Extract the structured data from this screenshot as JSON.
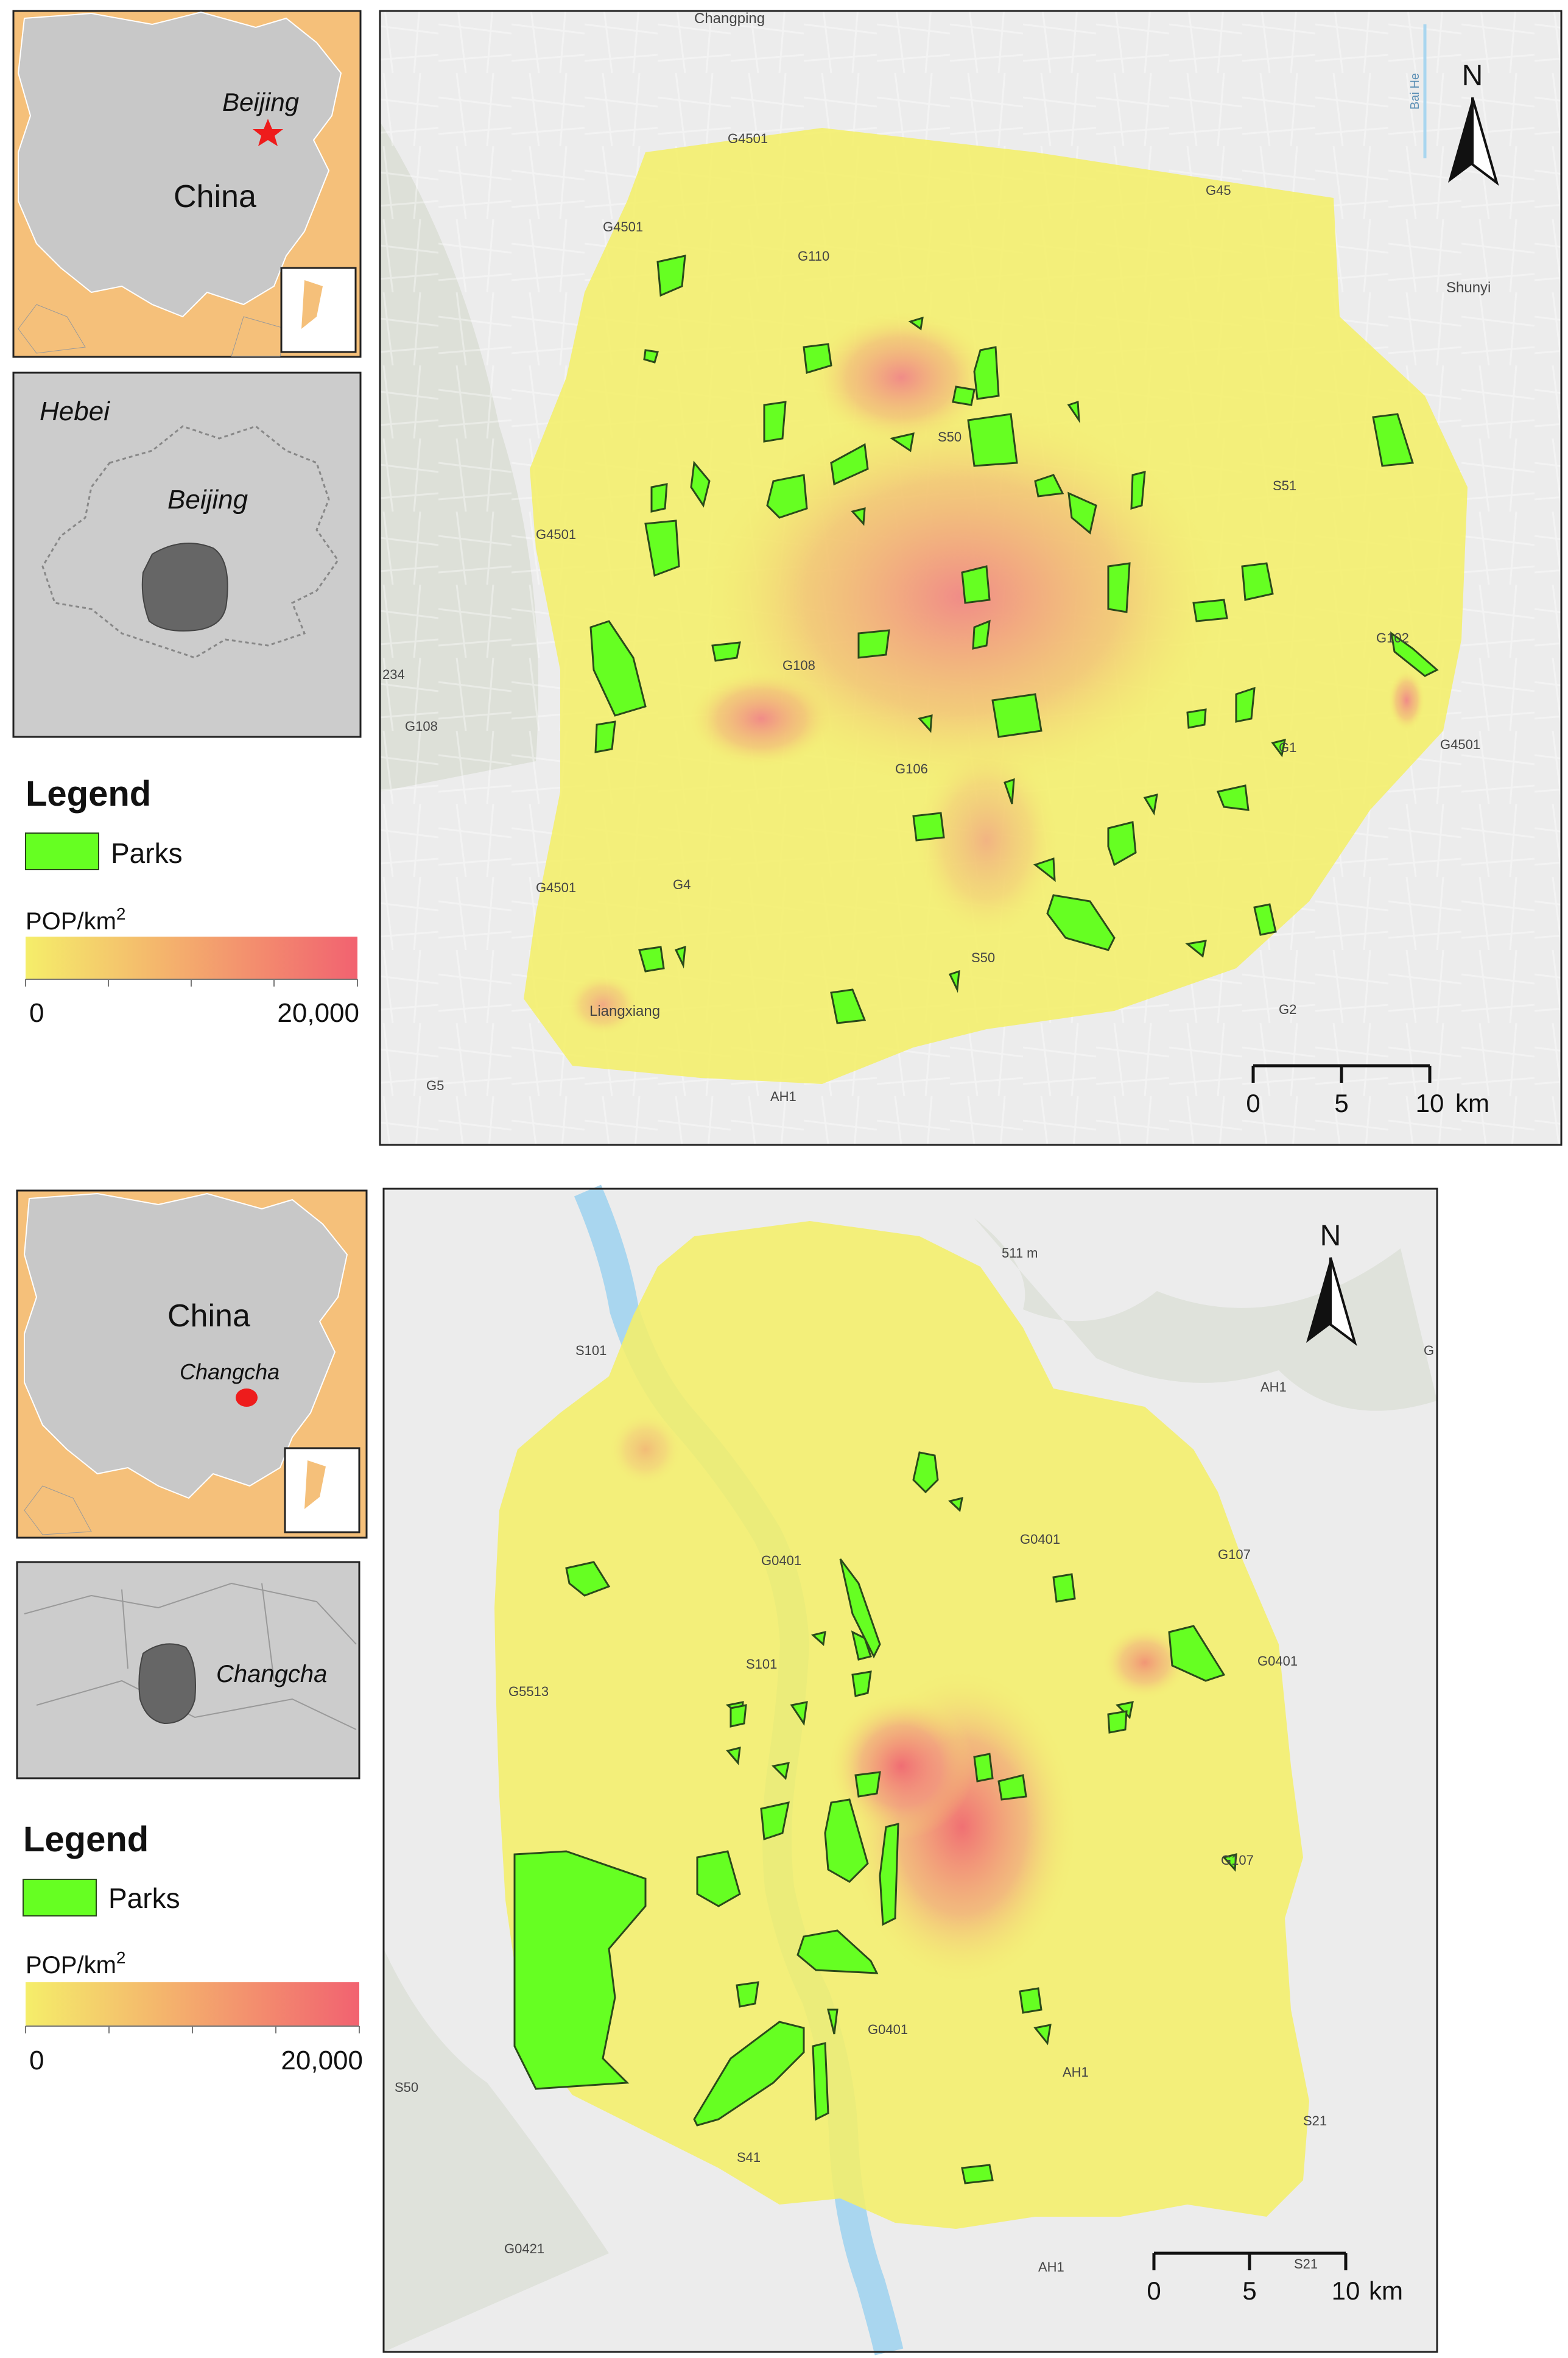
{
  "colors": {
    "park": "#66ff22",
    "park_stroke": "#2a4a1a",
    "extent_fill": "#f4ef6a",
    "pop_low": "#f5ee6a",
    "pop_high": "#f26270",
    "china_land": "#c8c8c8",
    "neighbor_land": "#f5c07a",
    "province_fill": "#cccccc",
    "city_fill": "#666666",
    "basemap": "#ececec",
    "river": "#a9d6ef"
  },
  "panels": [
    {
      "city": "Beijing",
      "inset_china": {
        "label": "China",
        "city_label": "Beijing",
        "marker": "star"
      },
      "inset_region": {
        "province_label": "Hebei",
        "city_label": "Beijing"
      },
      "legend": {
        "title": "Legend",
        "parks_label": "Parks",
        "pop_label": "POP/km",
        "pop_label_sup": "2",
        "min_label": "0",
        "max_label": "20,000"
      },
      "north": "N",
      "scale": {
        "t0": "0",
        "t1": "5",
        "t2": "10",
        "unit": "km"
      },
      "places": {
        "p1": "Changping",
        "p2": "Shunyi",
        "p3": "Liangxiang",
        "river": "Bai He"
      },
      "roads": {
        "r1": "G4501",
        "r2": "G45",
        "r3": "G4501",
        "r4": "G110",
        "r5": "S50",
        "r6": "S51",
        "r7": "G4501",
        "r8": "G108",
        "r9": "G102",
        "r10": "234",
        "r11": "G108",
        "r12": "G106",
        "r13": "G1",
        "r14": "G4501",
        "r15": "G4501",
        "r16": "G4",
        "r17": "S50",
        "r18": "G2",
        "r19": "G5",
        "r20": "AH1"
      }
    },
    {
      "city": "Changcha",
      "inset_china": {
        "label": "China",
        "city_label": "Changcha",
        "marker": "dot"
      },
      "inset_region": {
        "city_label": "Changcha"
      },
      "legend": {
        "title": "Legend",
        "parks_label": "Parks",
        "pop_label": "POP/km",
        "pop_label_sup": "2",
        "min_label": "0",
        "max_label": "20,000"
      },
      "north": "N",
      "scale": {
        "t0": "0",
        "t1": "5",
        "t2": "10",
        "unit": "km"
      },
      "places": {
        "peak": "511 m"
      },
      "roads": {
        "r1": "S101",
        "r2": "AH1",
        "r3": "G0401",
        "r4": "G0401",
        "r5": "G107",
        "r6": "S101",
        "r7": "G0401",
        "r8": "G5513",
        "r9": "G107",
        "r10": "G0401",
        "r11": "AH1",
        "r12": "S50",
        "r13": "S41",
        "r14": "S21",
        "r15": "G0421",
        "r16": "AH1",
        "r17": "S21",
        "r18": "G"
      }
    }
  ]
}
